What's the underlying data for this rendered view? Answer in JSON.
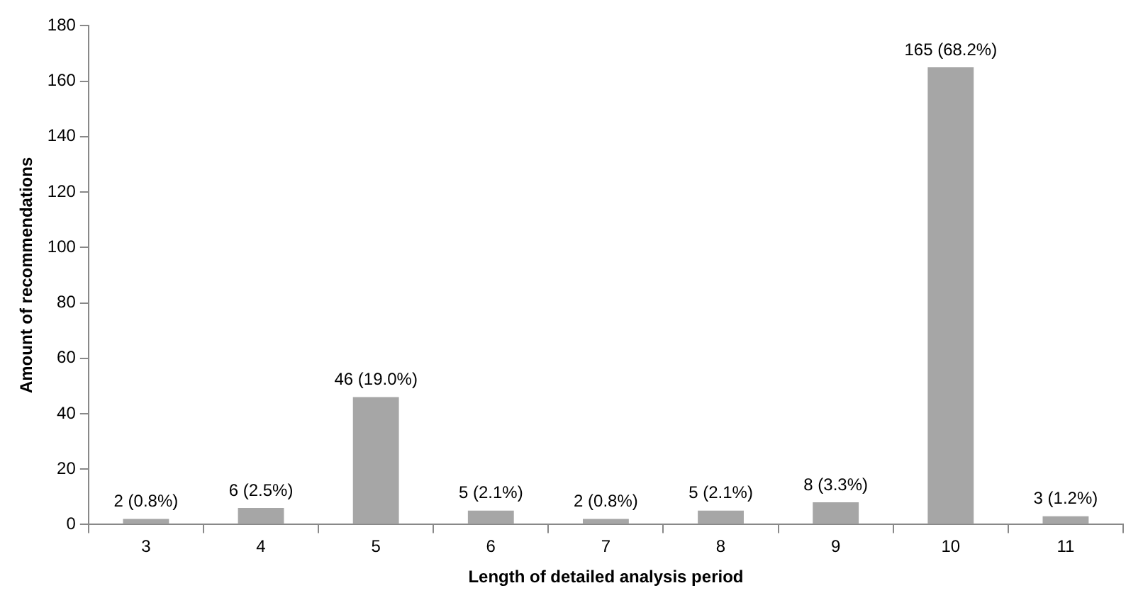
{
  "chart_data": {
    "type": "bar",
    "xlabel": "Length of detailed analysis period",
    "ylabel": "Amount of recommendations",
    "categories": [
      "3",
      "4",
      "5",
      "6",
      "7",
      "8",
      "9",
      "10",
      "11"
    ],
    "values": [
      2,
      6,
      46,
      5,
      2,
      5,
      8,
      165,
      3
    ],
    "value_labels": [
      "2 (0.8%)",
      "6 (2.5%)",
      "46 (19.0%)",
      "5 (2.1%)",
      "2 (0.8%)",
      "5 (2.1%)",
      "8 (3.3%)",
      "165 (68.2%)",
      "3 (1.2%)"
    ],
    "color": "#a6a6a6",
    "ylim": [
      0,
      180
    ],
    "yticks": [
      0,
      20,
      40,
      60,
      80,
      100,
      120,
      140,
      160,
      180
    ],
    "grid": false
  }
}
